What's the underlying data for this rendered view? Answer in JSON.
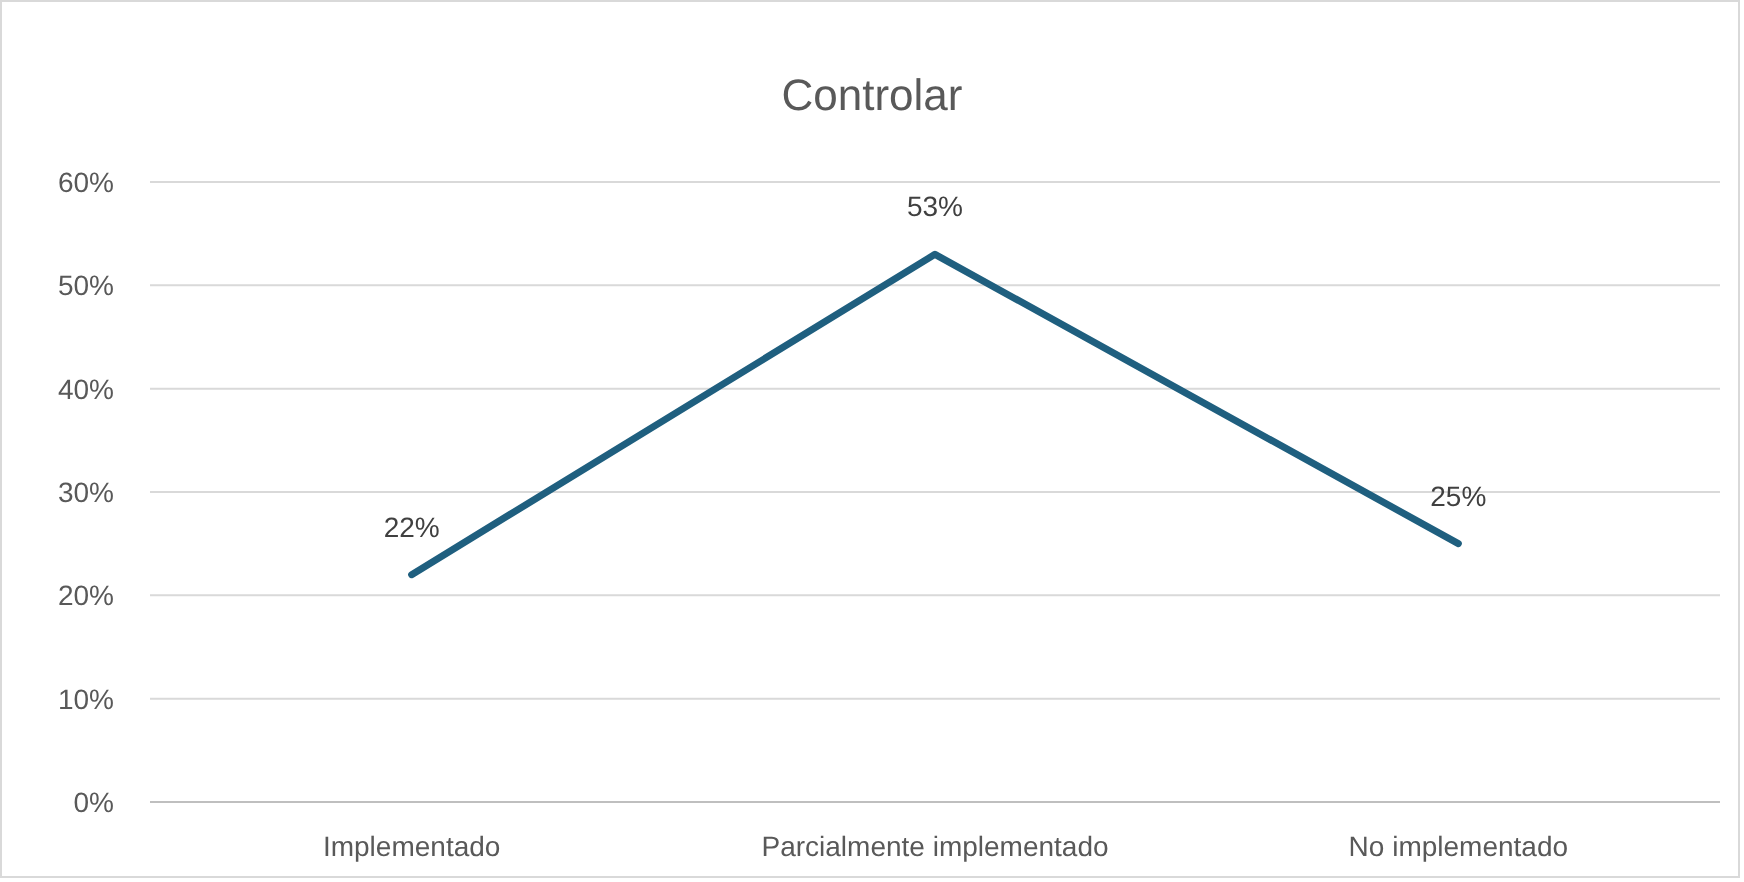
{
  "chart_data": {
    "type": "line",
    "title": "Controlar",
    "categories": [
      "Implementado",
      "Parcialmente implementado",
      "No implementado"
    ],
    "series": [
      {
        "color": "#1f5f7f",
        "values": [
          22,
          53,
          25
        ],
        "value_labels": [
          "22%",
          "53%",
          "25%"
        ]
      }
    ],
    "ylim": [
      0,
      60
    ],
    "yticks": [
      {
        "value": 0,
        "label": "0%"
      },
      {
        "value": 10,
        "label": "10%"
      },
      {
        "value": 20,
        "label": "20%"
      },
      {
        "value": 30,
        "label": "30%"
      },
      {
        "value": 40,
        "label": "40%"
      },
      {
        "value": 50,
        "label": "50%"
      },
      {
        "value": 60,
        "label": "60%"
      }
    ],
    "grid": "y",
    "marker": "none",
    "line_style": "solid"
  }
}
